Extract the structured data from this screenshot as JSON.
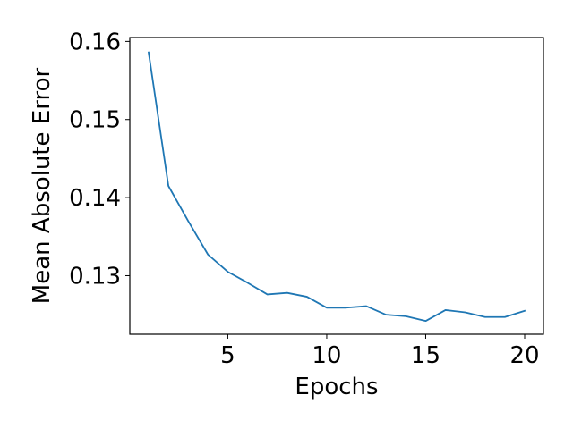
{
  "chart_data": {
    "type": "line",
    "title": "",
    "xlabel": "Epochs",
    "ylabel": "Mean Absolute Error",
    "xlim": [
      0.05,
      20.95
    ],
    "ylim": [
      0.1225,
      0.1605
    ],
    "xticks": [
      5,
      10,
      15,
      20
    ],
    "xtick_labels": [
      "5",
      "10",
      "15",
      "20"
    ],
    "yticks": [
      0.13,
      0.14,
      0.15,
      0.16
    ],
    "ytick_labels": [
      "0.13",
      "0.14",
      "0.15",
      "0.16"
    ],
    "grid": false,
    "series": [
      {
        "color": "#1f77b4",
        "x": [
          1,
          2,
          3,
          4,
          5,
          6,
          7,
          8,
          9,
          10,
          11,
          12,
          13,
          14,
          15,
          16,
          17,
          18,
          19,
          20
        ],
        "y": [
          0.1586,
          0.1415,
          0.137,
          0.1327,
          0.1305,
          0.1291,
          0.1276,
          0.1278,
          0.1273,
          0.1259,
          0.1259,
          0.1261,
          0.125,
          0.1248,
          0.1242,
          0.1256,
          0.1253,
          0.1247,
          0.1247,
          0.1255
        ]
      }
    ]
  }
}
